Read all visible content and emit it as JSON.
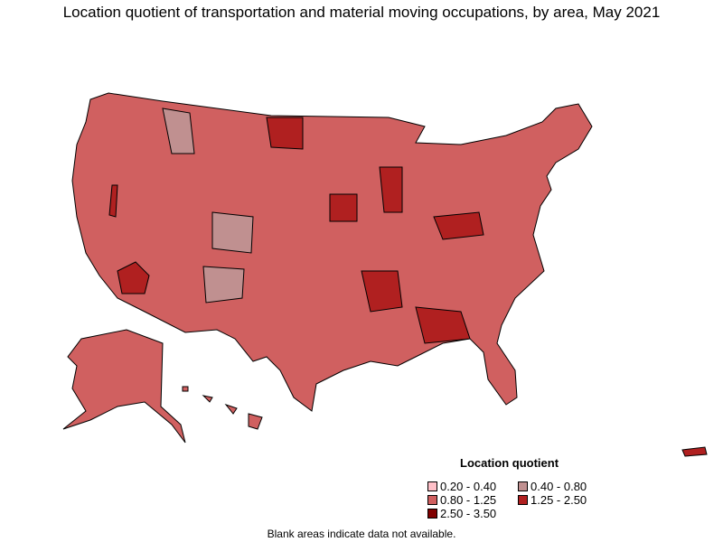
{
  "title": "Location quotient of transportation and material moving occupations, by area, May 2021",
  "legend": {
    "title": "Location quotient",
    "items": [
      {
        "label": "0.20 - 0.40",
        "color": "#FFC0C8"
      },
      {
        "label": "0.40 - 0.80",
        "color": "#C09090"
      },
      {
        "label": "0.80 - 1.25",
        "color": "#D06060"
      },
      {
        "label": "1.25 - 2.50",
        "color": "#B02020"
      },
      {
        "label": "2.50 - 3.50",
        "color": "#800000"
      }
    ]
  },
  "note": "Blank areas indicate data not available."
}
